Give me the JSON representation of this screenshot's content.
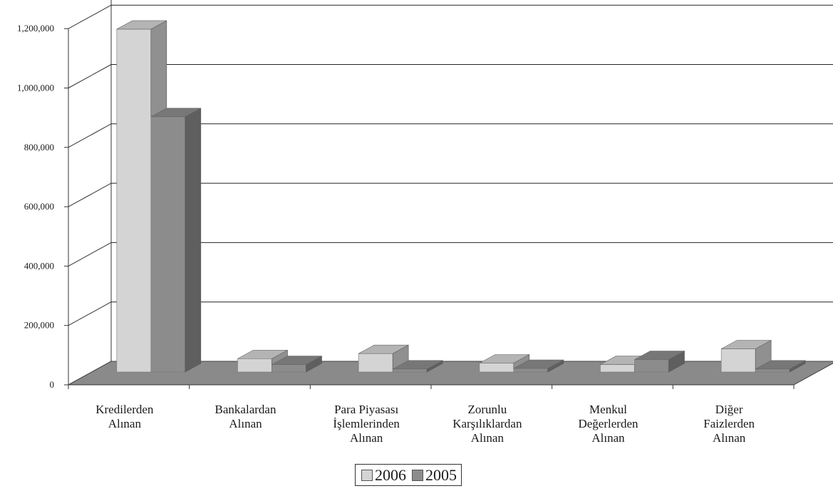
{
  "chart_data": {
    "type": "bar",
    "categories": [
      [
        "Kredilerden",
        "Alınan"
      ],
      [
        "Bankalardan",
        "Alınan"
      ],
      [
        "Para Piyasası",
        "İşlemlerinden",
        "Alınan"
      ],
      [
        "Zorunlu",
        "Karşılıklardan",
        "Alınan"
      ],
      [
        "Menkul",
        "Değerlerden",
        "Alınan"
      ],
      [
        "Diğer",
        "Faizlerden",
        "Alınan"
      ]
    ],
    "series": [
      {
        "name": "2006",
        "values": [
          1155000,
          45000,
          62000,
          30000,
          25000,
          78000
        ],
        "color": "#d4d4d4"
      },
      {
        "name": "2005",
        "values": [
          860000,
          25000,
          10000,
          12000,
          42000,
          10000
        ],
        "color": "#8c8c8c"
      }
    ],
    "yticks": [
      "0",
      "200,000",
      "400,000",
      "600,000",
      "800,000",
      "1,000,000",
      "1,200,000"
    ],
    "ylim": [
      0,
      1200000
    ],
    "grid": true,
    "legend_position": "bottom",
    "style": "3d-clustered-column",
    "floor_color": "#8a8a8a"
  }
}
